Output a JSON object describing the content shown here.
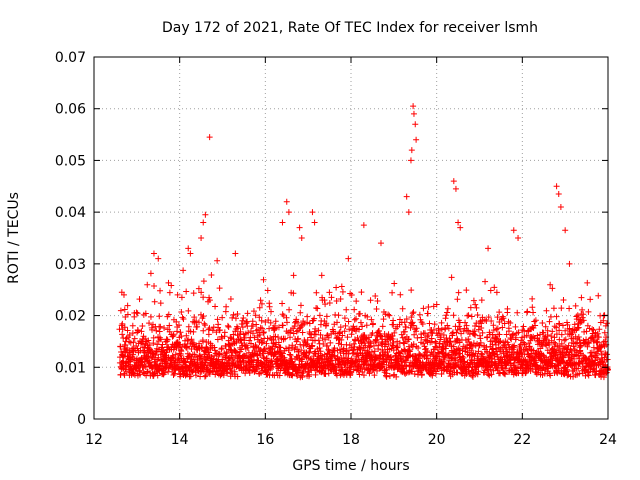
{
  "chart_data": {
    "type": "scatter",
    "title": "Day 172 of 2021, Rate Of TEC Index for receiver lsmh",
    "xlabel": "GPS time / hours",
    "ylabel": "ROTI / TECUs",
    "xlim": [
      12,
      24
    ],
    "ylim": [
      0,
      0.07
    ],
    "xticks": [
      12,
      14,
      16,
      18,
      20,
      22,
      24
    ],
    "xtick_labels": [
      "12",
      "14",
      "16",
      "18",
      "20",
      "22",
      "24"
    ],
    "yticks": [
      0,
      0.01,
      0.02,
      0.03,
      0.04,
      0.05,
      0.06,
      0.07
    ],
    "ytick_labels": [
      "0",
      "0.01",
      "0.02",
      "0.03",
      "0.04",
      "0.05",
      "0.06",
      "0.07"
    ],
    "grid": true,
    "marker": "+",
    "series": [
      {
        "name": "ROTI",
        "color": "#ff0000",
        "x_start": 12.6,
        "x_end": 24.0,
        "baseline_min": 0.004,
        "baseline_max": 0.02,
        "points": [
          {
            "x": 12.65,
            "y": 0.0245
          },
          {
            "x": 12.7,
            "y": 0.024
          },
          {
            "x": 13.4,
            "y": 0.032
          },
          {
            "x": 13.5,
            "y": 0.031
          },
          {
            "x": 14.2,
            "y": 0.033
          },
          {
            "x": 14.25,
            "y": 0.032
          },
          {
            "x": 14.5,
            "y": 0.035
          },
          {
            "x": 14.55,
            "y": 0.038
          },
          {
            "x": 14.6,
            "y": 0.0395
          },
          {
            "x": 14.7,
            "y": 0.0545
          },
          {
            "x": 15.3,
            "y": 0.032
          },
          {
            "x": 16.4,
            "y": 0.038
          },
          {
            "x": 16.5,
            "y": 0.042
          },
          {
            "x": 16.55,
            "y": 0.04
          },
          {
            "x": 16.8,
            "y": 0.037
          },
          {
            "x": 16.85,
            "y": 0.035
          },
          {
            "x": 17.1,
            "y": 0.04
          },
          {
            "x": 17.15,
            "y": 0.038
          },
          {
            "x": 18.3,
            "y": 0.0375
          },
          {
            "x": 18.7,
            "y": 0.034
          },
          {
            "x": 19.3,
            "y": 0.043
          },
          {
            "x": 19.35,
            "y": 0.04
          },
          {
            "x": 19.4,
            "y": 0.05
          },
          {
            "x": 19.42,
            "y": 0.052
          },
          {
            "x": 19.45,
            "y": 0.0605
          },
          {
            "x": 19.47,
            "y": 0.059
          },
          {
            "x": 19.5,
            "y": 0.057
          },
          {
            "x": 19.52,
            "y": 0.054
          },
          {
            "x": 20.4,
            "y": 0.046
          },
          {
            "x": 20.45,
            "y": 0.0445
          },
          {
            "x": 20.5,
            "y": 0.038
          },
          {
            "x": 20.55,
            "y": 0.037
          },
          {
            "x": 21.2,
            "y": 0.033
          },
          {
            "x": 21.8,
            "y": 0.0365
          },
          {
            "x": 21.9,
            "y": 0.035
          },
          {
            "x": 22.8,
            "y": 0.045
          },
          {
            "x": 22.85,
            "y": 0.0435
          },
          {
            "x": 22.9,
            "y": 0.041
          },
          {
            "x": 23.0,
            "y": 0.0365
          },
          {
            "x": 23.1,
            "y": 0.03
          },
          {
            "x": 23.9,
            "y": 0.02
          },
          {
            "x": 23.95,
            "y": 0.018
          }
        ]
      }
    ]
  }
}
